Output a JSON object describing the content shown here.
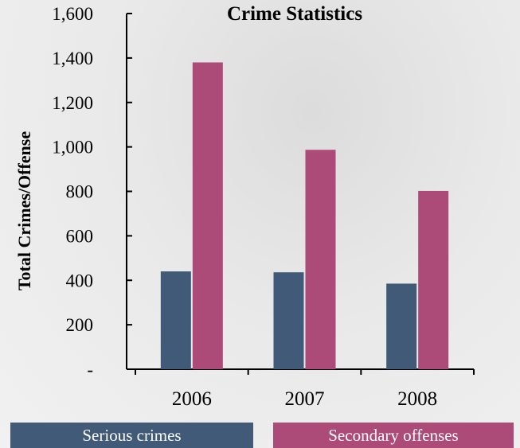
{
  "chart_data": {
    "type": "bar",
    "title": "Crime Statistics",
    "xlabel": "",
    "ylabel": "Total Crimes/Offense",
    "categories": [
      "2006",
      "2007",
      "2008"
    ],
    "series": [
      {
        "name": "Serious crimes",
        "color": "#415a78",
        "values": [
          440,
          436,
          385
        ]
      },
      {
        "name": "Secondary offenses",
        "color": "#ac4a78",
        "values": [
          1380,
          987,
          802
        ]
      }
    ],
    "ylim": [
      0,
      1600
    ],
    "yticks": [
      0,
      200,
      400,
      600,
      800,
      1000,
      1200,
      1400,
      1600
    ],
    "ytick_labels": [
      "-",
      "200",
      "400",
      "600",
      "800",
      "1,000",
      "1,200",
      "1,400",
      "1,600"
    ],
    "grid": false,
    "legend": "bottom"
  }
}
